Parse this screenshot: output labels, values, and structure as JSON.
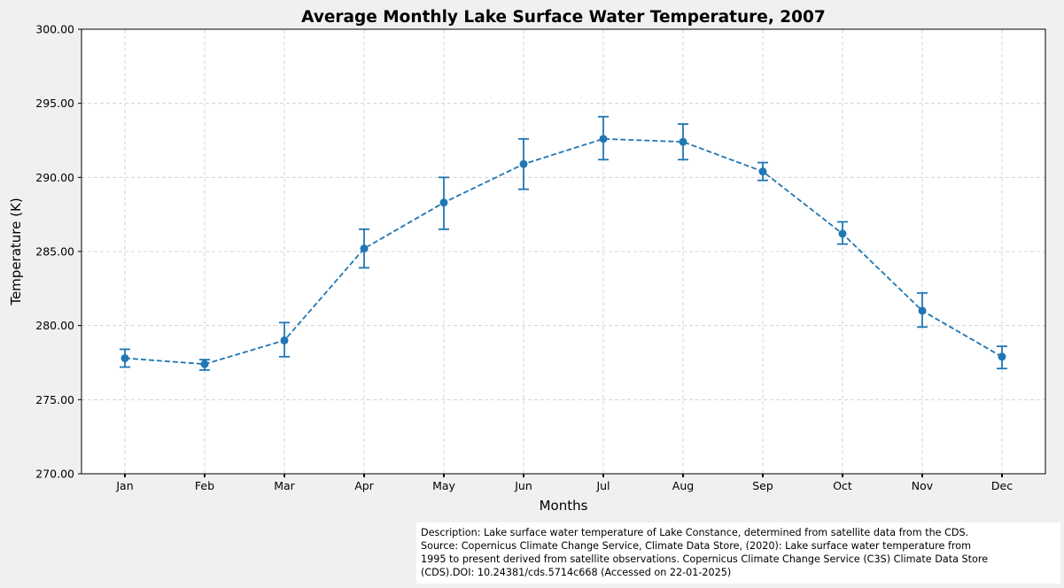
{
  "chart_data": {
    "type": "line",
    "title": "Average Monthly Lake Surface Water Temperature, 2007",
    "xlabel": "Months",
    "ylabel": "Temperature (K)",
    "categories": [
      "Jan",
      "Feb",
      "Mar",
      "Apr",
      "May",
      "Jun",
      "Jul",
      "Aug",
      "Sep",
      "Oct",
      "Nov",
      "Dec"
    ],
    "values": [
      277.8,
      277.4,
      279.0,
      285.2,
      288.3,
      290.9,
      292.6,
      292.4,
      290.4,
      286.2,
      281.0,
      277.9
    ],
    "error_low": [
      277.2,
      277.0,
      277.9,
      283.9,
      286.5,
      289.2,
      291.2,
      291.2,
      289.8,
      285.5,
      279.9,
      277.1
    ],
    "error_high": [
      278.4,
      277.7,
      280.2,
      286.5,
      290.0,
      292.6,
      294.1,
      293.6,
      291.0,
      287.0,
      282.2,
      278.6
    ],
    "ylim": [
      270.0,
      300.0
    ],
    "yticks": [
      "270.00",
      "275.00",
      "280.00",
      "285.00",
      "290.00",
      "295.00",
      "300.00"
    ],
    "line_style": "dashed",
    "marker": "circle",
    "grid": true,
    "series_color": "#1f77b4",
    "grid_color": "#cccccc"
  },
  "description": {
    "lines": [
      "Description: Lake surface water temperature of Lake Constance, determined from satellite data from the CDS.",
      "Source: Copernicus Climate Change Service, Climate Data Store, (2020): Lake surface water temperature from",
      "1995 to present derived from satellite observations. Copernicus Climate Change Service (C3S) Climate Data Store",
      "(CDS).DOI: 10.24381/cds.5714c668 (Accessed on 22-01-2025)"
    ]
  }
}
